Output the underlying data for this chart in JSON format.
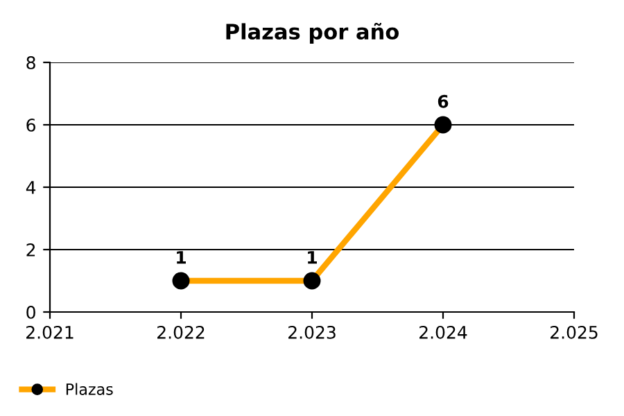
{
  "chart_data": {
    "type": "line",
    "title": "Plazas por año",
    "x": [
      2022,
      2023,
      2024
    ],
    "series": [
      {
        "name": "Plazas",
        "color": "#ffa500",
        "values": [
          1,
          1,
          6
        ]
      }
    ],
    "xlim": [
      2021,
      2025
    ],
    "xticks": [
      {
        "value": 2021,
        "label": "2.021"
      },
      {
        "value": 2022,
        "label": "2.022"
      },
      {
        "value": 2023,
        "label": "2.023"
      },
      {
        "value": 2024,
        "label": "2.024"
      },
      {
        "value": 2025,
        "label": "2.025"
      }
    ],
    "ylim": [
      0,
      8
    ],
    "yticks": [
      0,
      2,
      4,
      6,
      8
    ],
    "grid": "y",
    "legend": "bottom left",
    "marker": "circle",
    "line_style": "solid",
    "data_labels": true
  }
}
